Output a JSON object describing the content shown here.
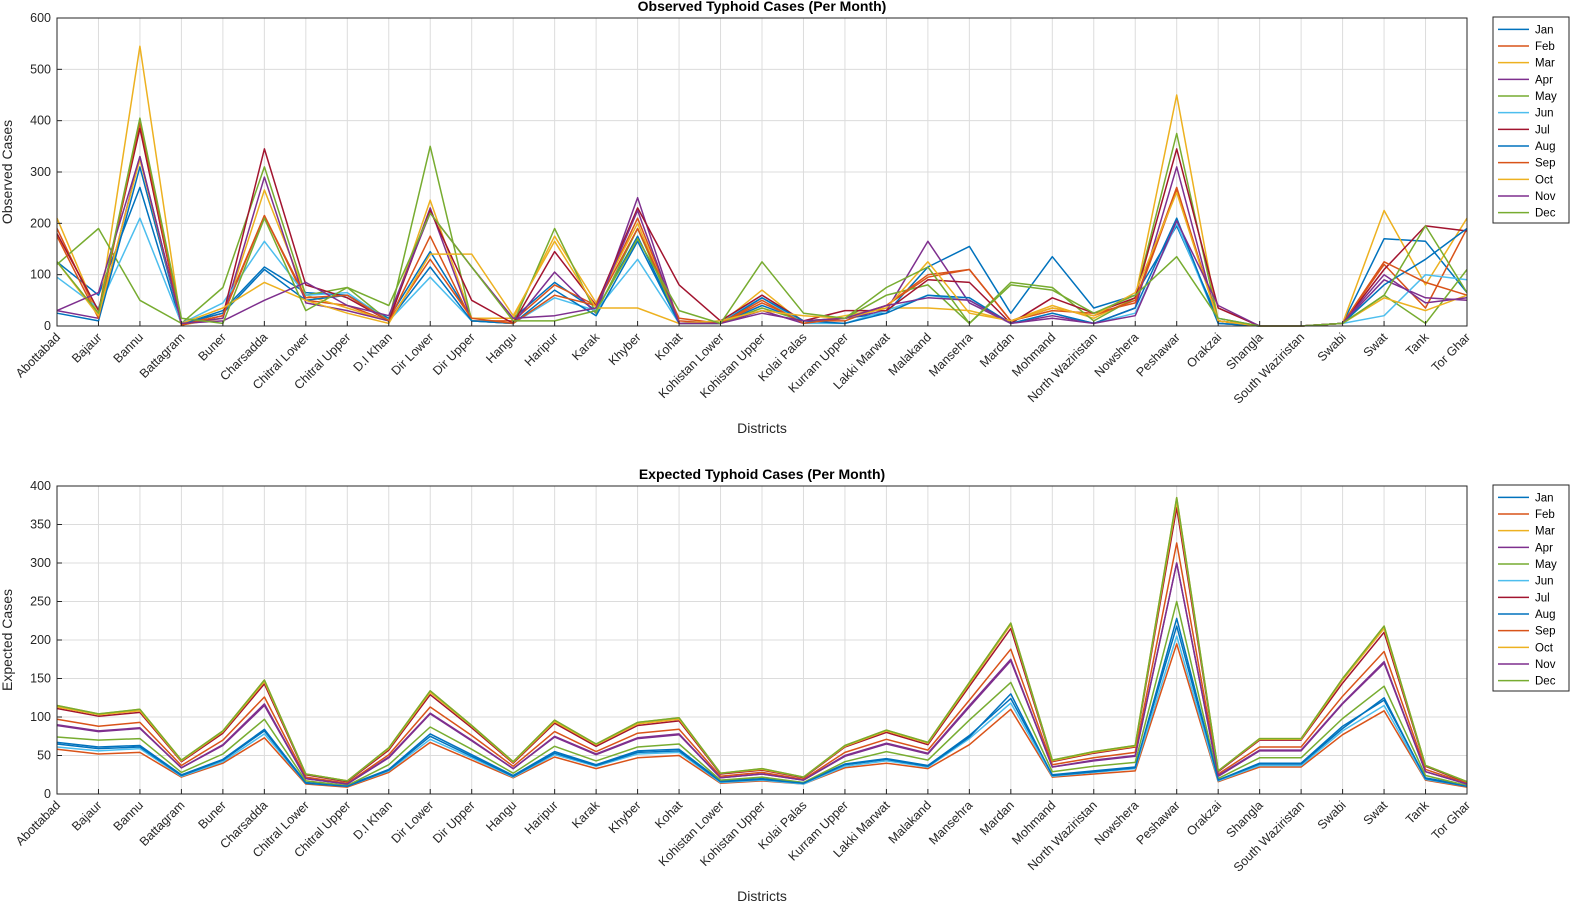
{
  "colors": [
    "#0072BD",
    "#D95319",
    "#EDB120",
    "#7E2F8E",
    "#77AC30",
    "#4DBEEE",
    "#A2142F",
    "#0072BD",
    "#D95319",
    "#EDB120",
    "#7E2F8E",
    "#77AC30"
  ],
  "chart_data": [
    {
      "type": "line",
      "title": "Observed Typhoid Cases (Per Month)",
      "xlabel": "Districts",
      "ylabel": "Observed Cases",
      "ylim": [
        0,
        600
      ],
      "yticks": [
        0,
        100,
        200,
        300,
        400,
        500,
        600
      ],
      "grid": true,
      "legend_position": "right",
      "categories": [
        "Abottabad",
        "Bajaur",
        "Bannu",
        "Battagram",
        "Buner",
        "Charsadda",
        "Chitral Lower",
        "Chitral Upper",
        "D.I Khan",
        "Dir Lower",
        "Dir Upper",
        "Hangu",
        "Haripur",
        "Karak",
        "Khyber",
        "Kohat",
        "Kohistan Lower",
        "Kohistan Upper",
        "Kolai Palas",
        "Kurram Upper",
        "Lakki Marwat",
        "Malakand",
        "Mansehra",
        "Mardan",
        "Mohmand",
        "North Waziristan",
        "Nowshera",
        "Peshawar",
        "Orakzai",
        "Shangla",
        "South Waziristan",
        "Swabi",
        "Swat",
        "Tank",
        "Tor Ghar"
      ],
      "series": [
        {
          "name": "Jan",
          "values": [
            125,
            60,
            270,
            3,
            30,
            115,
            65,
            60,
            15,
            145,
            15,
            15,
            85,
            30,
            175,
            5,
            5,
            40,
            10,
            15,
            25,
            115,
            155,
            25,
            135,
            35,
            60,
            195,
            15,
            0,
            0,
            5,
            170,
            165,
            65
          ]
        },
        {
          "name": "Feb",
          "values": [
            190,
            20,
            395,
            3,
            25,
            215,
            50,
            40,
            10,
            175,
            10,
            10,
            80,
            40,
            210,
            10,
            5,
            45,
            10,
            10,
            40,
            95,
            110,
            10,
            30,
            25,
            45,
            265,
            10,
            0,
            0,
            5,
            120,
            35,
            190
          ]
        },
        {
          "name": "Mar",
          "values": [
            210,
            20,
            545,
            2,
            15,
            265,
            60,
            35,
            10,
            245,
            15,
            15,
            175,
            45,
            200,
            5,
            5,
            70,
            5,
            20,
            35,
            35,
            30,
            10,
            40,
            15,
            55,
            450,
            10,
            0,
            0,
            5,
            225,
            80,
            210
          ]
        },
        {
          "name": "Apr",
          "values": [
            30,
            15,
            330,
            5,
            15,
            290,
            45,
            30,
            10,
            230,
            10,
            5,
            105,
            25,
            250,
            5,
            5,
            30,
            5,
            15,
            30,
            165,
            45,
            5,
            20,
            5,
            35,
            310,
            5,
            0,
            0,
            5,
            90,
            55,
            50
          ]
        },
        {
          "name": "May",
          "values": [
            120,
            190,
            50,
            5,
            75,
            310,
            60,
            75,
            10,
            350,
            10,
            5,
            190,
            25,
            190,
            5,
            5,
            35,
            10,
            15,
            60,
            80,
            5,
            85,
            75,
            10,
            55,
            375,
            10,
            0,
            0,
            5,
            60,
            5,
            110
          ]
        },
        {
          "name": "Jun",
          "values": [
            95,
            35,
            210,
            5,
            45,
            165,
            60,
            65,
            10,
            95,
            10,
            5,
            55,
            30,
            130,
            5,
            10,
            55,
            5,
            5,
            30,
            60,
            50,
            5,
            25,
            5,
            25,
            200,
            5,
            0,
            0,
            5,
            20,
            100,
            90
          ]
        },
        {
          "name": "Jul",
          "values": [
            180,
            30,
            385,
            2,
            20,
            345,
            80,
            55,
            10,
            225,
            50,
            5,
            145,
            40,
            230,
            80,
            10,
            60,
            10,
            30,
            30,
            90,
            85,
            5,
            55,
            25,
            55,
            345,
            35,
            0,
            0,
            5,
            110,
            195,
            185
          ]
        },
        {
          "name": "Aug",
          "values": [
            25,
            10,
            310,
            5,
            25,
            110,
            50,
            60,
            10,
            115,
            10,
            5,
            70,
            20,
            165,
            5,
            5,
            55,
            10,
            5,
            25,
            60,
            55,
            5,
            25,
            5,
            35,
            210,
            5,
            0,
            0,
            5,
            80,
            130,
            190
          ]
        },
        {
          "name": "Sep",
          "values": [
            175,
            15,
            400,
            2,
            20,
            215,
            55,
            60,
            10,
            130,
            15,
            5,
            60,
            40,
            190,
            15,
            5,
            50,
            5,
            15,
            40,
            100,
            110,
            10,
            35,
            20,
            50,
            270,
            10,
            0,
            0,
            5,
            125,
            85,
            60
          ]
        },
        {
          "name": "Oct",
          "values": [
            125,
            20,
            325,
            5,
            35,
            85,
            50,
            25,
            5,
            140,
            140,
            20,
            165,
            35,
            35,
            5,
            10,
            30,
            20,
            15,
            35,
            125,
            25,
            10,
            35,
            20,
            65,
            260,
            10,
            0,
            0,
            5,
            55,
            30,
            60
          ]
        },
        {
          "name": "Nov",
          "values": [
            30,
            65,
            330,
            5,
            10,
            50,
            85,
            40,
            20,
            220,
            115,
            15,
            20,
            35,
            225,
            5,
            5,
            25,
            10,
            15,
            40,
            55,
            50,
            5,
            15,
            5,
            20,
            205,
            40,
            0,
            0,
            5,
            100,
            45,
            55
          ]
        },
        {
          "name": "Dec",
          "values": [
            125,
            25,
            405,
            15,
            5,
            210,
            30,
            75,
            40,
            220,
            115,
            10,
            10,
            30,
            170,
            30,
            5,
            125,
            25,
            15,
            75,
            115,
            5,
            80,
            70,
            25,
            60,
            135,
            15,
            0,
            0,
            5,
            60,
            195,
            65
          ]
        }
      ]
    },
    {
      "type": "line",
      "title": "Expected Typhoid Cases (Per Month)",
      "xlabel": "Districts",
      "ylabel": "Expected Cases",
      "ylim": [
        0,
        400
      ],
      "yticks": [
        0,
        50,
        100,
        150,
        200,
        250,
        300,
        350,
        400
      ],
      "grid": true,
      "legend_position": "right",
      "categories": [
        "Abottabad",
        "Bajaur",
        "Bannu",
        "Battagram",
        "Buner",
        "Charsadda",
        "Chitral Lower",
        "Chitral Upper",
        "D.I Khan",
        "Dir Lower",
        "Dir Upper",
        "Hangu",
        "Haripur",
        "Karak",
        "Khyber",
        "Kohat",
        "Kohistan Lower",
        "Kohistan Upper",
        "Kolai Palas",
        "Kurram Upper",
        "Lakki Marwat",
        "Malakand",
        "Mansehra",
        "Mardan",
        "Mohmand",
        "North Waziristan",
        "Nowshera",
        "Peshawar",
        "Orakzai",
        "Shangla",
        "South Waziristan",
        "Swabi",
        "Swat",
        "Tank",
        "Tor Ghar"
      ],
      "series": [
        {
          "name": "Jan",
          "values": [
            67,
            61,
            63,
            25,
            45,
            84,
            15,
            11,
            32,
            78,
            51,
            24,
            55,
            38,
            56,
            58,
            17,
            20,
            15,
            39,
            46,
            37,
            76,
            124,
            25,
            30,
            35,
            218,
            18,
            40,
            40,
            88,
            122,
            21,
            11
          ]
        },
        {
          "name": "Feb",
          "values": [
            58,
            52,
            54,
            22,
            40,
            73,
            13,
            9,
            28,
            67,
            44,
            21,
            48,
            33,
            47,
            50,
            14,
            17,
            13,
            34,
            40,
            33,
            64,
            110,
            22,
            26,
            30,
            195,
            16,
            35,
            35,
            77,
            108,
            18,
            9
          ]
        },
        {
          "name": "Mar",
          "values": [
            115,
            104,
            110,
            44,
            82,
            148,
            26,
            17,
            60,
            134,
            89,
            42,
            96,
            65,
            93,
            99,
            27,
            33,
            22,
            63,
            83,
            67,
            145,
            222,
            44,
            55,
            63,
            385,
            30,
            72,
            72,
            150,
            218,
            37,
            16
          ]
        },
        {
          "name": "Apr",
          "values": [
            89,
            81,
            85,
            34,
            63,
            115,
            20,
            13,
            47,
            104,
            69,
            33,
            74,
            51,
            72,
            77,
            21,
            26,
            18,
            49,
            65,
            52,
            113,
            173,
            35,
            43,
            49,
            300,
            23,
            56,
            56,
            117,
            170,
            29,
            13
          ]
        },
        {
          "name": "May",
          "values": [
            74,
            70,
            72,
            28,
            52,
            97,
            17,
            11,
            38,
            87,
            58,
            27,
            62,
            43,
            61,
            65,
            18,
            22,
            15,
            42,
            55,
            44,
            96,
            145,
            29,
            36,
            41,
            250,
            20,
            47,
            47,
            98,
            140,
            24,
            11
          ]
        },
        {
          "name": "Jun",
          "values": [
            61,
            56,
            59,
            23,
            42,
            78,
            14,
            10,
            30,
            71,
            47,
            22,
            51,
            36,
            52,
            54,
            15,
            18,
            13,
            36,
            43,
            35,
            72,
            118,
            23,
            28,
            33,
            205,
            17,
            37,
            37,
            82,
            115,
            19,
            10
          ]
        },
        {
          "name": "Jul",
          "values": [
            111,
            101,
            106,
            42,
            79,
            143,
            25,
            16,
            57,
            129,
            86,
            40,
            92,
            62,
            89,
            95,
            26,
            31,
            21,
            61,
            80,
            64,
            140,
            215,
            42,
            53,
            61,
            372,
            29,
            70,
            70,
            144,
            210,
            36,
            15
          ]
        },
        {
          "name": "Aug",
          "values": [
            65,
            59,
            61,
            24,
            44,
            82,
            14,
            10,
            31,
            75,
            49,
            23,
            53,
            37,
            54,
            56,
            16,
            19,
            14,
            38,
            45,
            36,
            74,
            130,
            24,
            29,
            34,
            228,
            18,
            39,
            39,
            85,
            125,
            20,
            10
          ]
        },
        {
          "name": "Sep",
          "values": [
            97,
            88,
            93,
            37,
            70,
            126,
            22,
            14,
            51,
            113,
            76,
            36,
            81,
            55,
            79,
            84,
            23,
            28,
            19,
            54,
            71,
            57,
            122,
            188,
            38,
            47,
            54,
            326,
            26,
            61,
            61,
            127,
            185,
            32,
            14
          ]
        },
        {
          "name": "Oct",
          "values": [
            113,
            103,
            108,
            43,
            81,
            146,
            26,
            17,
            59,
            132,
            88,
            41,
            94,
            64,
            91,
            97,
            27,
            32,
            22,
            62,
            82,
            66,
            143,
            220,
            43,
            54,
            62,
            380,
            30,
            71,
            71,
            148,
            215,
            37,
            16
          ]
        },
        {
          "name": "Nov",
          "values": [
            90,
            82,
            86,
            34,
            64,
            117,
            20,
            13,
            48,
            105,
            70,
            33,
            75,
            52,
            73,
            78,
            21,
            26,
            18,
            50,
            66,
            53,
            115,
            175,
            35,
            44,
            50,
            300,
            24,
            57,
            57,
            118,
            172,
            29,
            13
          ]
        },
        {
          "name": "Dec",
          "values": [
            115,
            104,
            110,
            44,
            82,
            148,
            26,
            17,
            60,
            134,
            89,
            42,
            96,
            65,
            93,
            99,
            27,
            33,
            22,
            63,
            83,
            67,
            145,
            222,
            44,
            55,
            63,
            385,
            30,
            72,
            72,
            150,
            218,
            37,
            16
          ]
        }
      ]
    }
  ]
}
